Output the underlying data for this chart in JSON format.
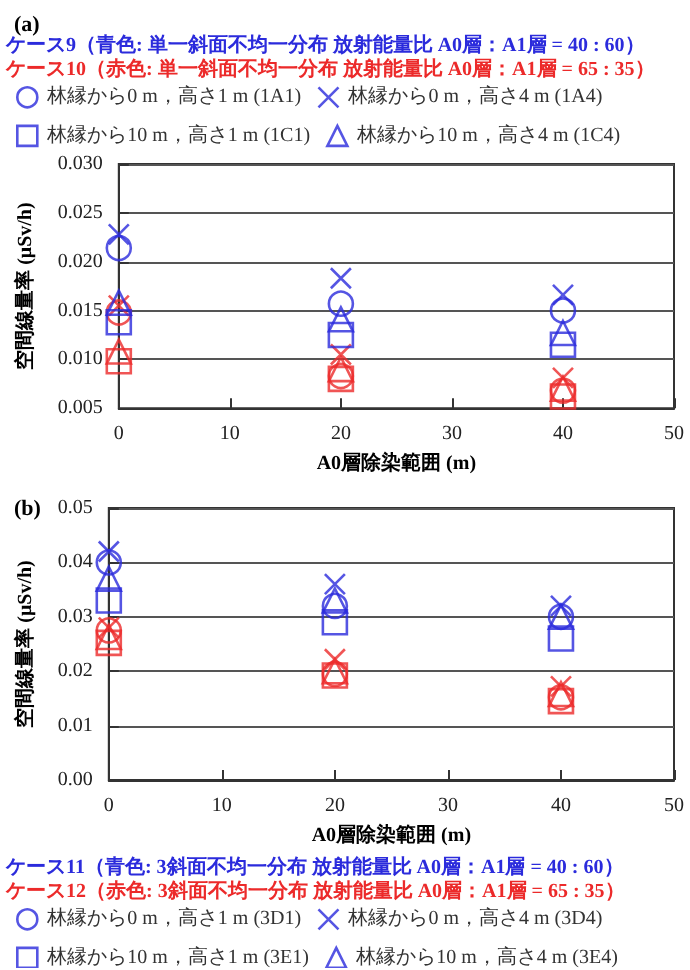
{
  "chart_data": [
    {
      "type": "scatter",
      "title": "(a)",
      "xlabel": "A0層除染範囲 (m)",
      "ylabel": "空間線量率 (μSv/h)",
      "x": [
        0,
        20,
        40,
        0,
        20,
        40
      ],
      "xlim": [
        0,
        50
      ],
      "xticks": [
        0,
        10,
        20,
        30,
        40,
        50
      ],
      "ylim": [
        0.005,
        0.03
      ],
      "yticks": [
        {
          "value": 0.005,
          "label": "0.005"
        },
        {
          "value": 0.01,
          "label": "0.010"
        },
        {
          "value": 0.015,
          "label": "0.015"
        },
        {
          "value": 0.02,
          "label": "0.020"
        },
        {
          "value": 0.025,
          "label": "0.025"
        },
        {
          "value": 0.03,
          "label": "0.030"
        }
      ],
      "grid": "y",
      "legend": "top",
      "annotations": [
        "ケース9（青色: 単一斜面不均一分布 放射能量比 A0層：A1層 = 40 : 60）",
        "ケース10（赤色: 単一斜面不均一分布 放射能量比 A0層：A1層 = 65 : 35）"
      ],
      "series": [
        {
          "name": "林縁から0 m，高さ1 m (1A1)",
          "marker": "circle",
          "colors": [
            "#2b2bdc",
            "#2b2bdc",
            "#2b2bdc",
            "#ec2a2a",
            "#ec2a2a",
            "#ec2a2a"
          ],
          "values": [
            0.0214,
            0.0157,
            0.015,
            0.0148,
            0.0083,
            0.0068
          ]
        },
        {
          "name": "林縁から0 m，高さ4 m (1A4)",
          "marker": "cross",
          "colors": [
            "#2b2bdc",
            "#2b2bdc",
            "#2b2bdc",
            "#ec2a2a",
            "#ec2a2a",
            "#ec2a2a"
          ],
          "values": [
            0.0228,
            0.0183,
            0.0166,
            0.0155,
            0.0105,
            0.0081
          ]
        },
        {
          "name": "林縁から10 m，高さ1 m (1C1)",
          "marker": "square",
          "colors": [
            "#2b2bdc",
            "#2b2bdc",
            "#2b2bdc",
            "#ec2a2a",
            "#ec2a2a",
            "#ec2a2a"
          ],
          "values": [
            0.0138,
            0.0125,
            0.0115,
            0.0098,
            0.008,
            0.0062
          ]
        },
        {
          "name": "林縁から10 m，高さ4 m (1C4)",
          "marker": "triangle",
          "colors": [
            "#2b2bdc",
            "#2b2bdc",
            "#2b2bdc",
            "#ec2a2a",
            "#ec2a2a",
            "#ec2a2a"
          ],
          "values": [
            0.0158,
            0.0141,
            0.0127,
            0.0108,
            0.009,
            0.007
          ]
        }
      ]
    },
    {
      "type": "scatter",
      "title": "(b)",
      "xlabel": "A0層除染範囲 (m)",
      "ylabel": "空間線量率 (μSv/h)",
      "x": [
        0,
        20,
        40,
        0,
        20,
        40
      ],
      "xlim": [
        0,
        50
      ],
      "xticks": [
        0,
        10,
        20,
        30,
        40,
        50
      ],
      "ylim": [
        0,
        0.05
      ],
      "yticks": [
        {
          "value": 0,
          "label": "0.00"
        },
        {
          "value": 0.01,
          "label": "0.01"
        },
        {
          "value": 0.02,
          "label": "0.02"
        },
        {
          "value": 0.03,
          "label": "0.03"
        },
        {
          "value": 0.04,
          "label": "0.04"
        },
        {
          "value": 0.05,
          "label": "0.05"
        }
      ],
      "grid": "y",
      "legend": "bottom",
      "annotations": [
        "ケース11（青色: 3斜面不均一分布 放射能量比 A0層：A1層 = 40 : 60）",
        "ケース12（赤色: 3斜面不均一分布 放射能量比 A0層：A1層 = 65 : 35）"
      ],
      "series": [
        {
          "name": "林縁から0 m，高さ1 m (3D1)",
          "marker": "circle",
          "colors": [
            "#2b2bdc",
            "#2b2bdc",
            "#2b2bdc",
            "#ec2a2a",
            "#ec2a2a",
            "#ec2a2a"
          ],
          "values": [
            0.04,
            0.032,
            0.03,
            0.0275,
            0.0195,
            0.0152
          ]
        },
        {
          "name": "林縁から0 m，高さ4 m (3D4)",
          "marker": "cross",
          "colors": [
            "#2b2bdc",
            "#2b2bdc",
            "#2b2bdc",
            "#ec2a2a",
            "#ec2a2a",
            "#ec2a2a"
          ],
          "values": [
            0.042,
            0.036,
            0.032,
            0.028,
            0.0222,
            0.0172
          ]
        },
        {
          "name": "林縁から10 m，高さ1 m (3E1)",
          "marker": "square",
          "colors": [
            "#2b2bdc",
            "#2b2bdc",
            "#2b2bdc",
            "#ec2a2a",
            "#ec2a2a",
            "#ec2a2a"
          ],
          "values": [
            0.033,
            0.029,
            0.026,
            0.0252,
            0.0192,
            0.0145
          ]
        },
        {
          "name": "林縁から10 m，高さ4 m (3E4)",
          "marker": "triangle",
          "colors": [
            "#2b2bdc",
            "#2b2bdc",
            "#2b2bdc",
            "#ec2a2a",
            "#ec2a2a",
            "#ec2a2a"
          ],
          "values": [
            0.037,
            0.033,
            0.03,
            0.0263,
            0.02,
            0.0158
          ]
        }
      ]
    }
  ]
}
